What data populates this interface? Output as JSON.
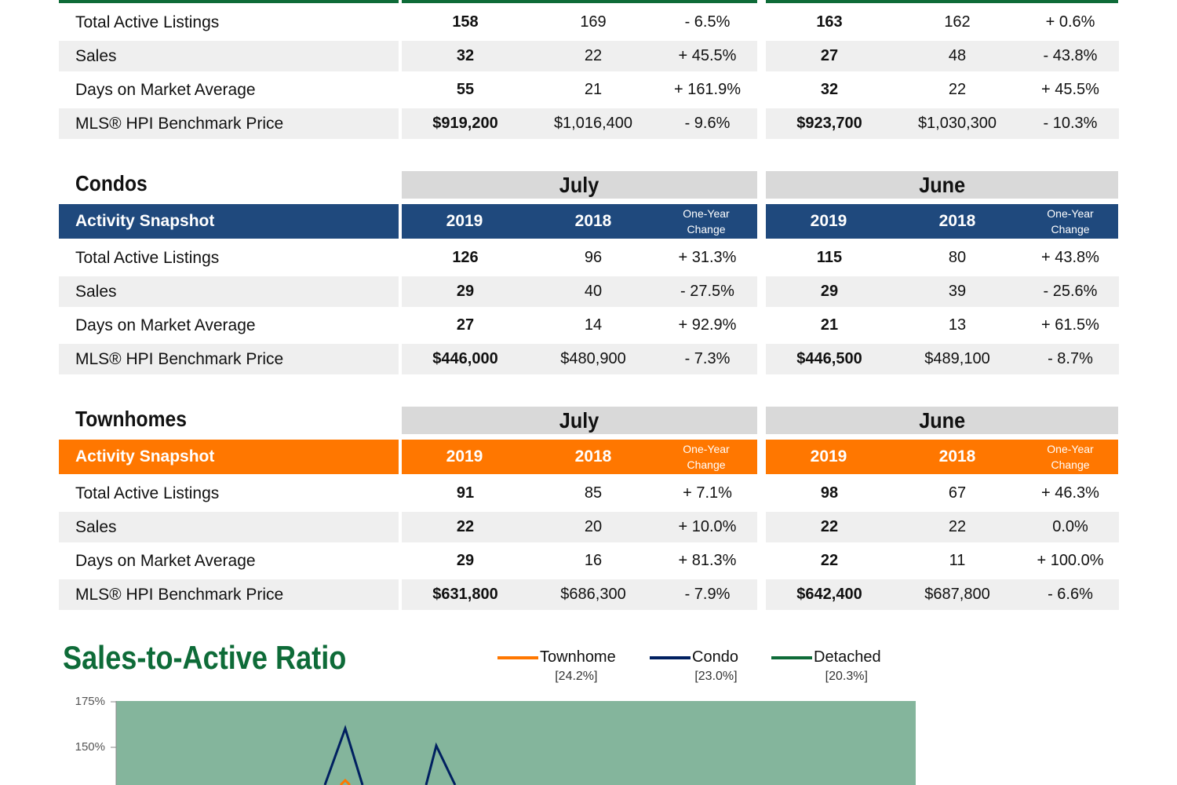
{
  "detached_table": {
    "rows": [
      {
        "label": "Total Active Listings",
        "july_2019": "158",
        "july_2018": "169",
        "july_change": "- 6.5%",
        "june_2019": "163",
        "june_2018": "162",
        "june_change": "+ 0.6%"
      },
      {
        "label": "Sales",
        "july_2019": "32",
        "july_2018": "22",
        "july_change": "+ 45.5%",
        "june_2019": "27",
        "june_2018": "48",
        "june_change": "- 43.8%"
      },
      {
        "label": "Days on Market Average",
        "july_2019": "55",
        "july_2018": "21",
        "july_change": "+ 161.9%",
        "june_2019": "32",
        "june_2018": "22",
        "june_change": "+ 45.5%"
      },
      {
        "label": "MLS® HPI Benchmark Price",
        "july_2019": "$919,200",
        "july_2018": "$1,016,400",
        "july_change": "- 9.6%",
        "june_2019": "$923,700",
        "june_2018": "$1,030,300",
        "june_change": "- 10.3%"
      }
    ]
  },
  "condos_table": {
    "title": "Condos",
    "month1": "July",
    "month2": "June",
    "snapshot_label": "Activity Snapshot",
    "year1": "2019",
    "year2": "2018",
    "change_line1": "One-Year",
    "change_line2": "Change",
    "rows": [
      {
        "label": "Total Active Listings",
        "july_2019": "126",
        "july_2018": "96",
        "july_change": "+ 31.3%",
        "june_2019": "115",
        "june_2018": "80",
        "june_change": "+ 43.8%"
      },
      {
        "label": "Sales",
        "july_2019": "29",
        "july_2018": "40",
        "july_change": "- 27.5%",
        "june_2019": "29",
        "june_2018": "39",
        "june_change": "- 25.6%"
      },
      {
        "label": "Days on Market Average",
        "july_2019": "27",
        "july_2018": "14",
        "july_change": "+ 92.9%",
        "june_2019": "21",
        "june_2018": "13",
        "june_change": "+ 61.5%"
      },
      {
        "label": "MLS® HPI Benchmark Price",
        "july_2019": "$446,000",
        "july_2018": "$480,900",
        "july_change": "- 7.3%",
        "june_2019": "$446,500",
        "june_2018": "$489,100",
        "june_change": "- 8.7%"
      }
    ]
  },
  "townhomes_table": {
    "title": "Townhomes",
    "month1": "July",
    "month2": "June",
    "snapshot_label": "Activity Snapshot",
    "year1": "2019",
    "year2": "2018",
    "change_line1": "One-Year",
    "change_line2": "Change",
    "rows": [
      {
        "label": "Total Active Listings",
        "july_2019": "91",
        "july_2018": "85",
        "july_change": "+ 7.1%",
        "june_2019": "98",
        "june_2018": "67",
        "june_change": "+ 46.3%"
      },
      {
        "label": "Sales",
        "july_2019": "22",
        "july_2018": "20",
        "july_change": "+ 10.0%",
        "june_2019": "22",
        "june_2018": "22",
        "june_change": "0.0%"
      },
      {
        "label": "Days on Market Average",
        "july_2019": "29",
        "july_2018": "16",
        "july_change": "+ 81.3%",
        "june_2019": "22",
        "june_2018": "11",
        "june_change": "+ 100.0%"
      },
      {
        "label": "MLS® HPI Benchmark Price",
        "july_2019": "$631,800",
        "july_2018": "$686,300",
        "july_change": "- 7.9%",
        "june_2019": "$642,400",
        "june_2018": "$687,800",
        "june_change": "- 6.6%"
      }
    ]
  },
  "colors": {
    "detached": "#0e6b38",
    "condo": "#1f497d",
    "townhome": "#ff7700",
    "chart_bg": "#84b59c"
  },
  "chart_data": {
    "type": "line",
    "title": "Sales-to-Active Ratio",
    "series": [
      {
        "name": "Townhome",
        "legend_value": "[24.2%]",
        "color": "#ff7700"
      },
      {
        "name": "Condo",
        "legend_value": "[23.0%]",
        "color": "#002060"
      },
      {
        "name": "Detached",
        "legend_value": "[20.3%]",
        "color": "#0e6b38"
      }
    ],
    "y_ticks": [
      "175%",
      "150%"
    ],
    "ylim": [
      0,
      175
    ]
  }
}
